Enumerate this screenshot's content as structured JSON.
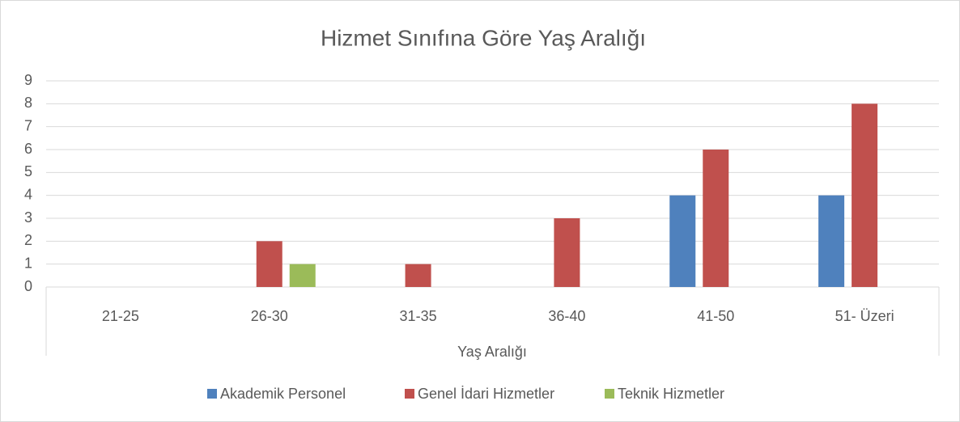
{
  "chart_data": {
    "type": "bar",
    "title": "Hizmet Sınıfına Göre Yaş Aralığı",
    "x_label": "Yaş Aralığı",
    "categories": [
      "21-25",
      "26-30",
      "31-35",
      "36-40",
      "41-50",
      "51- Üzeri"
    ],
    "series": [
      {
        "name": "Akademik Personel",
        "color": "#4f81bd",
        "values": [
          0,
          0,
          0,
          0,
          4,
          4
        ]
      },
      {
        "name": "Genel İdari Hizmetler",
        "color": "#c0504d",
        "values": [
          0,
          2,
          1,
          3,
          6,
          8
        ]
      },
      {
        "name": "Teknik Hizmetler",
        "color": "#9bbb59",
        "values": [
          0,
          1,
          0,
          0,
          0,
          0
        ]
      }
    ],
    "ylim": [
      0,
      9
    ],
    "yticks": [
      0,
      1,
      2,
      3,
      4,
      5,
      6,
      7,
      8,
      9
    ],
    "grid": true,
    "legend": "bottom"
  }
}
